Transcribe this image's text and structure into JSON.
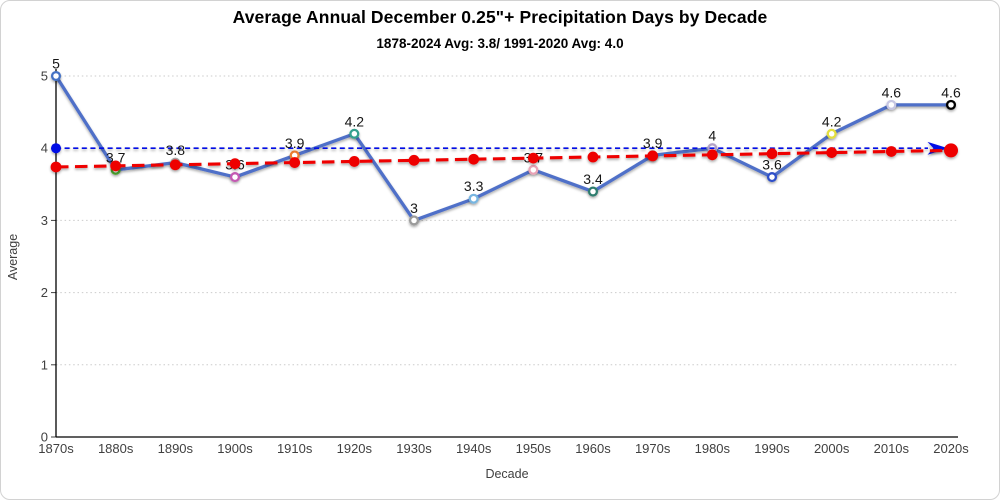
{
  "chart": {
    "title": "Average Annual December 0.25\"+ Precipitation Days by Decade",
    "subtitle": "1878-2024 Avg: 3.8/ 1991-2020 Avg: 4.0"
  },
  "chart_data": {
    "type": "line",
    "title": "Average Annual December 0.25\"+ Precipitation Days by Decade",
    "subtitle": "1878-2024 Avg: 3.8/ 1991-2020 Avg: 4.0",
    "xlabel": "Decade",
    "ylabel": "Average",
    "ylim": [
      0,
      5
    ],
    "yticks": [
      0,
      1,
      2,
      3,
      4,
      5
    ],
    "grid": "horizontal-dotted",
    "legend": "none",
    "categories": [
      "1870s",
      "1880s",
      "1890s",
      "1900s",
      "1910s",
      "1920s",
      "1930s",
      "1940s",
      "1950s",
      "1960s",
      "1970s",
      "1980s",
      "1990s",
      "2000s",
      "2010s",
      "2020s"
    ],
    "series": [
      {
        "name": "december-precip-days-by-decade",
        "type": "line",
        "values": [
          5,
          3.7,
          3.8,
          3.6,
          3.9,
          4.2,
          3,
          3.3,
          3.7,
          3.4,
          3.9,
          4,
          3.6,
          4.2,
          4.6,
          4.6
        ],
        "data_labels": [
          "5",
          "3.7",
          "3.8",
          "3.6",
          "3.9",
          "4.2",
          "3",
          "3.3",
          "3.7",
          "3.4",
          "3.9",
          "4",
          "3.6",
          "4.2",
          "4.6",
          "4.6"
        ],
        "color": "#506fc8",
        "marker_fill": "#ffffff",
        "marker_colors": [
          "#4472C4",
          "#4EA72E",
          "#A6A6A6",
          "#C45AB3",
          "#ED7D31",
          "#35A08F",
          "#9B9B9B",
          "#77B5E0",
          "#E9A3B6",
          "#2E7D6E",
          "#8F7034",
          "#B3A2C7",
          "#2F4FC9",
          "#E3DF3C",
          "#C6C6E3",
          "#000000"
        ]
      },
      {
        "name": "1991-2020-average-reference-line",
        "type": "reference",
        "value": 4.0,
        "color": "#0008e6",
        "style": "dashed",
        "start_marker": "dot",
        "end_marker": "arrow"
      },
      {
        "name": "1878-2024-linear-trend-line",
        "type": "trend",
        "start_value": 3.74,
        "end_value": 3.97,
        "color": "#ee0000",
        "style": "dashed",
        "dot_color": "#ee0000",
        "dots_at_each_category": true
      }
    ]
  }
}
